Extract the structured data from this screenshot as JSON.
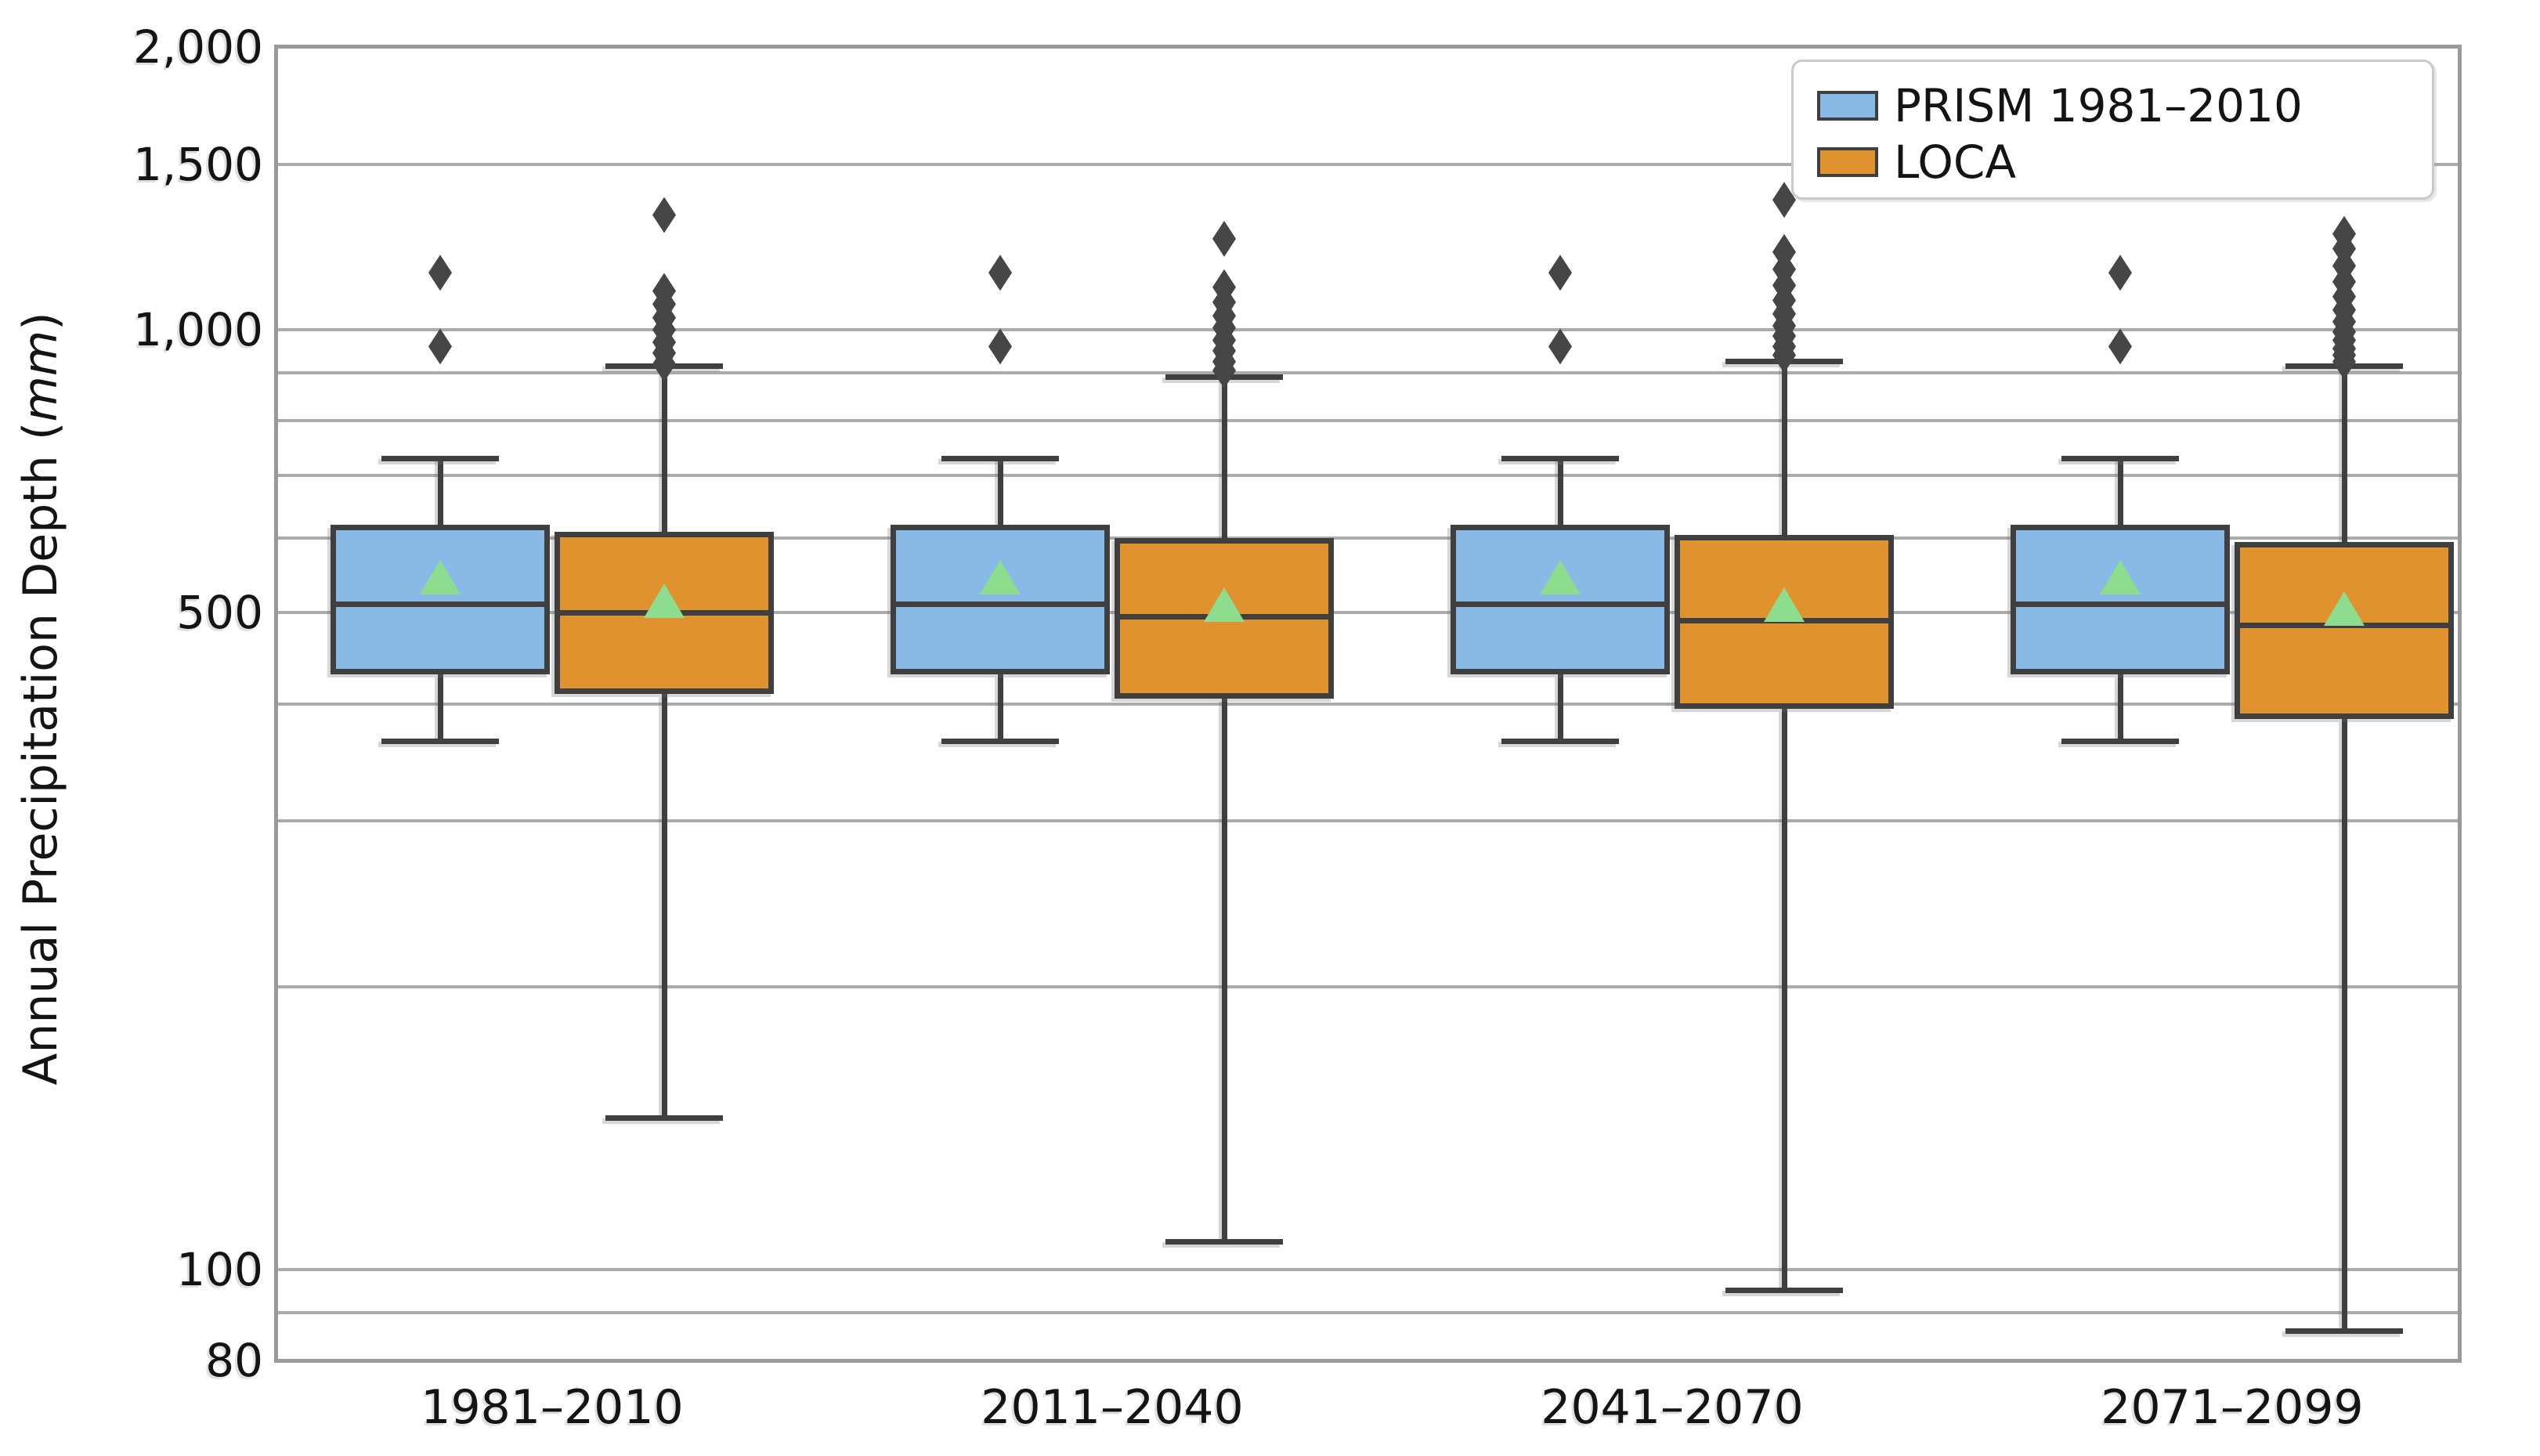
{
  "chart_data": {
    "type": "box",
    "title": "",
    "y_axis": {
      "label_prefix": "Annual Precipitation Depth (",
      "label_italic": "mm",
      "label_suffix": ")",
      "scale": "log",
      "range": [
        80,
        2000
      ],
      "major_ticks": [
        {
          "value": 2000,
          "label": "2,000"
        },
        {
          "value": 1500,
          "label": "1,500"
        },
        {
          "value": 1000,
          "label": "1,000"
        },
        {
          "value": 500,
          "label": "500"
        },
        {
          "value": 100,
          "label": "100"
        },
        {
          "value": 80,
          "label": "80"
        }
      ],
      "gridline_values": [
        1500,
        1000,
        900,
        800,
        700,
        600,
        500,
        400,
        300,
        200,
        100,
        90
      ]
    },
    "categories": [
      "1981–2010",
      "2011–2040",
      "2041–2070",
      "2071–2099"
    ],
    "series": [
      {
        "name": "PRISM 1981–2010",
        "color": "#89BAE6",
        "boxes": [
          {
            "low": 365,
            "q1": 430,
            "median": 510,
            "mean": 545,
            "q3": 620,
            "high": 730,
            "outliers": [
              960,
              1150
            ]
          },
          {
            "low": 365,
            "q1": 430,
            "median": 510,
            "mean": 545,
            "q3": 620,
            "high": 730,
            "outliers": [
              960,
              1150
            ]
          },
          {
            "low": 365,
            "q1": 430,
            "median": 510,
            "mean": 545,
            "q3": 620,
            "high": 730,
            "outliers": [
              960,
              1150
            ]
          },
          {
            "low": 365,
            "q1": 430,
            "median": 510,
            "mean": 545,
            "q3": 620,
            "high": 730,
            "outliers": [
              960,
              1150
            ]
          }
        ]
      },
      {
        "name": "LOCA",
        "color": "#E0922F",
        "boxes": [
          {
            "low": 145,
            "q1": 410,
            "median": 500,
            "mean": 515,
            "q3": 610,
            "high": 915,
            "outliers": [
              920,
              945,
              970,
              1000,
              1030,
              1065,
              1100,
              1325
            ]
          },
          {
            "low": 107,
            "q1": 405,
            "median": 495,
            "mean": 510,
            "q3": 600,
            "high": 890,
            "outliers": [
              905,
              925,
              950,
              975,
              1005,
              1035,
              1070,
              1110,
              1250
            ]
          },
          {
            "low": 95,
            "q1": 395,
            "median": 490,
            "mean": 510,
            "q3": 605,
            "high": 925,
            "outliers": [
              940,
              960,
              985,
              1010,
              1040,
              1075,
              1115,
              1160,
              1210,
              1375
            ]
          },
          {
            "low": 86,
            "q1": 385,
            "median": 485,
            "mean": 505,
            "q3": 595,
            "high": 915,
            "outliers": [
              925,
              940,
              955,
              975,
              995,
              1020,
              1050,
              1085,
              1125,
              1170,
              1220,
              1265
            ]
          }
        ]
      }
    ],
    "legend": {
      "position": "upper right",
      "entries": [
        "PRISM 1981–2010",
        "LOCA"
      ]
    },
    "marker_meanings": {
      "triangle": "mean",
      "diamond": "outlier"
    },
    "colors": {
      "box_border": "#3F3F3F",
      "mean_marker": "#8EDD8E",
      "outlier_marker": "#464646",
      "gridline": "#ABABAB",
      "frame": "#9A9A9A"
    }
  }
}
